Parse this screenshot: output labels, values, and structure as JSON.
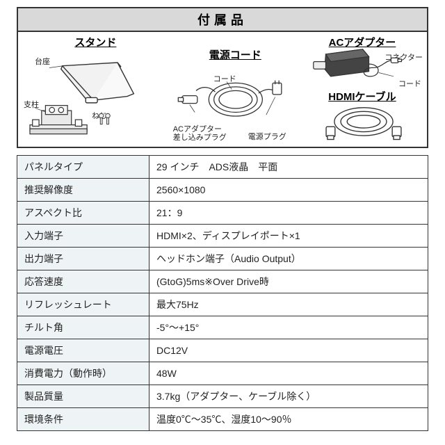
{
  "accessories": {
    "header": "付属品",
    "stand": {
      "title": "スタンド",
      "labels": {
        "base": "台座",
        "pillar": "支柱",
        "screw": "ねじ"
      }
    },
    "power_cord": {
      "title": "電源コード",
      "labels": {
        "cord": "コード",
        "adapter_plug": "ACアダプター\n差し込みプラグ",
        "power_plug": "電源プラグ"
      }
    },
    "ac_adapter": {
      "title": "ACアダプター",
      "labels": {
        "connector": "コネクター",
        "cord": "コード"
      }
    },
    "hdmi": {
      "title": "HDMIケーブル"
    }
  },
  "spec_rows": [
    {
      "k": "パネルタイプ",
      "v": "29 インチ　ADS液晶　平面"
    },
    {
      "k": "推奨解像度",
      "v": "2560×1080"
    },
    {
      "k": "アスペクト比",
      "v": "21：9"
    },
    {
      "k": "入力端子",
      "v": "HDMI×2、ディスプレイポート×1"
    },
    {
      "k": "出力端子",
      "v": "ヘッドホン端子（Audio Output）"
    },
    {
      "k": "応答速度",
      "v": "(GtoG)5ms※Over Drive時"
    },
    {
      "k": "リフレッシュレート",
      "v": "最大75Hz"
    },
    {
      "k": "チルト角",
      "v": "-5°～+15°"
    },
    {
      "k": "電源電圧",
      "v": "DC12V"
    },
    {
      "k": "消費電力（動作時）",
      "v": "48W"
    },
    {
      "k": "製品質量",
      "v": "3.7kg（アダプター、ケーブル除く）"
    },
    {
      "k": "環境条件",
      "v": "温度0℃～35℃、湿度10～90％"
    }
  ],
  "style": {
    "border_color": "#333333",
    "header_bg": "#d9d9d9",
    "key_bg": "#eef3f6",
    "font_size_table": 14,
    "font_size_header": 18,
    "font_size_small": 11
  }
}
